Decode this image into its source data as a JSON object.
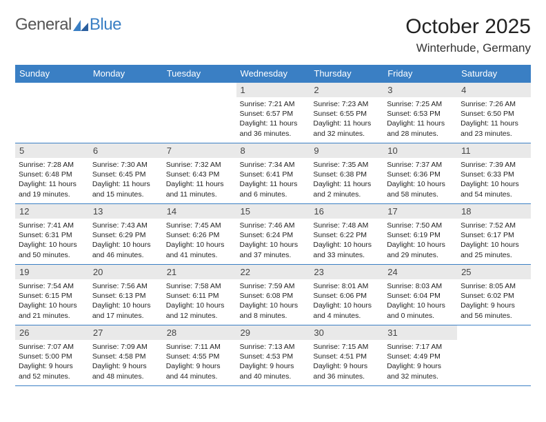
{
  "logo": {
    "text1": "General",
    "text2": "Blue"
  },
  "title": "October 2025",
  "location": "Winterhude, Germany",
  "colors": {
    "accent": "#3a7fc4",
    "dayHeaderBg": "#e9e9e9",
    "background": "#ffffff",
    "text": "#222222"
  },
  "weekdays": [
    "Sunday",
    "Monday",
    "Tuesday",
    "Wednesday",
    "Thursday",
    "Friday",
    "Saturday"
  ],
  "weeks": [
    [
      {
        "n": "",
        "sr": "",
        "ss": "",
        "dl": ""
      },
      {
        "n": "",
        "sr": "",
        "ss": "",
        "dl": ""
      },
      {
        "n": "",
        "sr": "",
        "ss": "",
        "dl": ""
      },
      {
        "n": "1",
        "sr": "Sunrise: 7:21 AM",
        "ss": "Sunset: 6:57 PM",
        "dl": "Daylight: 11 hours and 36 minutes."
      },
      {
        "n": "2",
        "sr": "Sunrise: 7:23 AM",
        "ss": "Sunset: 6:55 PM",
        "dl": "Daylight: 11 hours and 32 minutes."
      },
      {
        "n": "3",
        "sr": "Sunrise: 7:25 AM",
        "ss": "Sunset: 6:53 PM",
        "dl": "Daylight: 11 hours and 28 minutes."
      },
      {
        "n": "4",
        "sr": "Sunrise: 7:26 AM",
        "ss": "Sunset: 6:50 PM",
        "dl": "Daylight: 11 hours and 23 minutes."
      }
    ],
    [
      {
        "n": "5",
        "sr": "Sunrise: 7:28 AM",
        "ss": "Sunset: 6:48 PM",
        "dl": "Daylight: 11 hours and 19 minutes."
      },
      {
        "n": "6",
        "sr": "Sunrise: 7:30 AM",
        "ss": "Sunset: 6:45 PM",
        "dl": "Daylight: 11 hours and 15 minutes."
      },
      {
        "n": "7",
        "sr": "Sunrise: 7:32 AM",
        "ss": "Sunset: 6:43 PM",
        "dl": "Daylight: 11 hours and 11 minutes."
      },
      {
        "n": "8",
        "sr": "Sunrise: 7:34 AM",
        "ss": "Sunset: 6:41 PM",
        "dl": "Daylight: 11 hours and 6 minutes."
      },
      {
        "n": "9",
        "sr": "Sunrise: 7:35 AM",
        "ss": "Sunset: 6:38 PM",
        "dl": "Daylight: 11 hours and 2 minutes."
      },
      {
        "n": "10",
        "sr": "Sunrise: 7:37 AM",
        "ss": "Sunset: 6:36 PM",
        "dl": "Daylight: 10 hours and 58 minutes."
      },
      {
        "n": "11",
        "sr": "Sunrise: 7:39 AM",
        "ss": "Sunset: 6:33 PM",
        "dl": "Daylight: 10 hours and 54 minutes."
      }
    ],
    [
      {
        "n": "12",
        "sr": "Sunrise: 7:41 AM",
        "ss": "Sunset: 6:31 PM",
        "dl": "Daylight: 10 hours and 50 minutes."
      },
      {
        "n": "13",
        "sr": "Sunrise: 7:43 AM",
        "ss": "Sunset: 6:29 PM",
        "dl": "Daylight: 10 hours and 46 minutes."
      },
      {
        "n": "14",
        "sr": "Sunrise: 7:45 AM",
        "ss": "Sunset: 6:26 PM",
        "dl": "Daylight: 10 hours and 41 minutes."
      },
      {
        "n": "15",
        "sr": "Sunrise: 7:46 AM",
        "ss": "Sunset: 6:24 PM",
        "dl": "Daylight: 10 hours and 37 minutes."
      },
      {
        "n": "16",
        "sr": "Sunrise: 7:48 AM",
        "ss": "Sunset: 6:22 PM",
        "dl": "Daylight: 10 hours and 33 minutes."
      },
      {
        "n": "17",
        "sr": "Sunrise: 7:50 AM",
        "ss": "Sunset: 6:19 PM",
        "dl": "Daylight: 10 hours and 29 minutes."
      },
      {
        "n": "18",
        "sr": "Sunrise: 7:52 AM",
        "ss": "Sunset: 6:17 PM",
        "dl": "Daylight: 10 hours and 25 minutes."
      }
    ],
    [
      {
        "n": "19",
        "sr": "Sunrise: 7:54 AM",
        "ss": "Sunset: 6:15 PM",
        "dl": "Daylight: 10 hours and 21 minutes."
      },
      {
        "n": "20",
        "sr": "Sunrise: 7:56 AM",
        "ss": "Sunset: 6:13 PM",
        "dl": "Daylight: 10 hours and 17 minutes."
      },
      {
        "n": "21",
        "sr": "Sunrise: 7:58 AM",
        "ss": "Sunset: 6:11 PM",
        "dl": "Daylight: 10 hours and 12 minutes."
      },
      {
        "n": "22",
        "sr": "Sunrise: 7:59 AM",
        "ss": "Sunset: 6:08 PM",
        "dl": "Daylight: 10 hours and 8 minutes."
      },
      {
        "n": "23",
        "sr": "Sunrise: 8:01 AM",
        "ss": "Sunset: 6:06 PM",
        "dl": "Daylight: 10 hours and 4 minutes."
      },
      {
        "n": "24",
        "sr": "Sunrise: 8:03 AM",
        "ss": "Sunset: 6:04 PM",
        "dl": "Daylight: 10 hours and 0 minutes."
      },
      {
        "n": "25",
        "sr": "Sunrise: 8:05 AM",
        "ss": "Sunset: 6:02 PM",
        "dl": "Daylight: 9 hours and 56 minutes."
      }
    ],
    [
      {
        "n": "26",
        "sr": "Sunrise: 7:07 AM",
        "ss": "Sunset: 5:00 PM",
        "dl": "Daylight: 9 hours and 52 minutes."
      },
      {
        "n": "27",
        "sr": "Sunrise: 7:09 AM",
        "ss": "Sunset: 4:58 PM",
        "dl": "Daylight: 9 hours and 48 minutes."
      },
      {
        "n": "28",
        "sr": "Sunrise: 7:11 AM",
        "ss": "Sunset: 4:55 PM",
        "dl": "Daylight: 9 hours and 44 minutes."
      },
      {
        "n": "29",
        "sr": "Sunrise: 7:13 AM",
        "ss": "Sunset: 4:53 PM",
        "dl": "Daylight: 9 hours and 40 minutes."
      },
      {
        "n": "30",
        "sr": "Sunrise: 7:15 AM",
        "ss": "Sunset: 4:51 PM",
        "dl": "Daylight: 9 hours and 36 minutes."
      },
      {
        "n": "31",
        "sr": "Sunrise: 7:17 AM",
        "ss": "Sunset: 4:49 PM",
        "dl": "Daylight: 9 hours and 32 minutes."
      },
      {
        "n": "",
        "sr": "",
        "ss": "",
        "dl": ""
      }
    ]
  ]
}
